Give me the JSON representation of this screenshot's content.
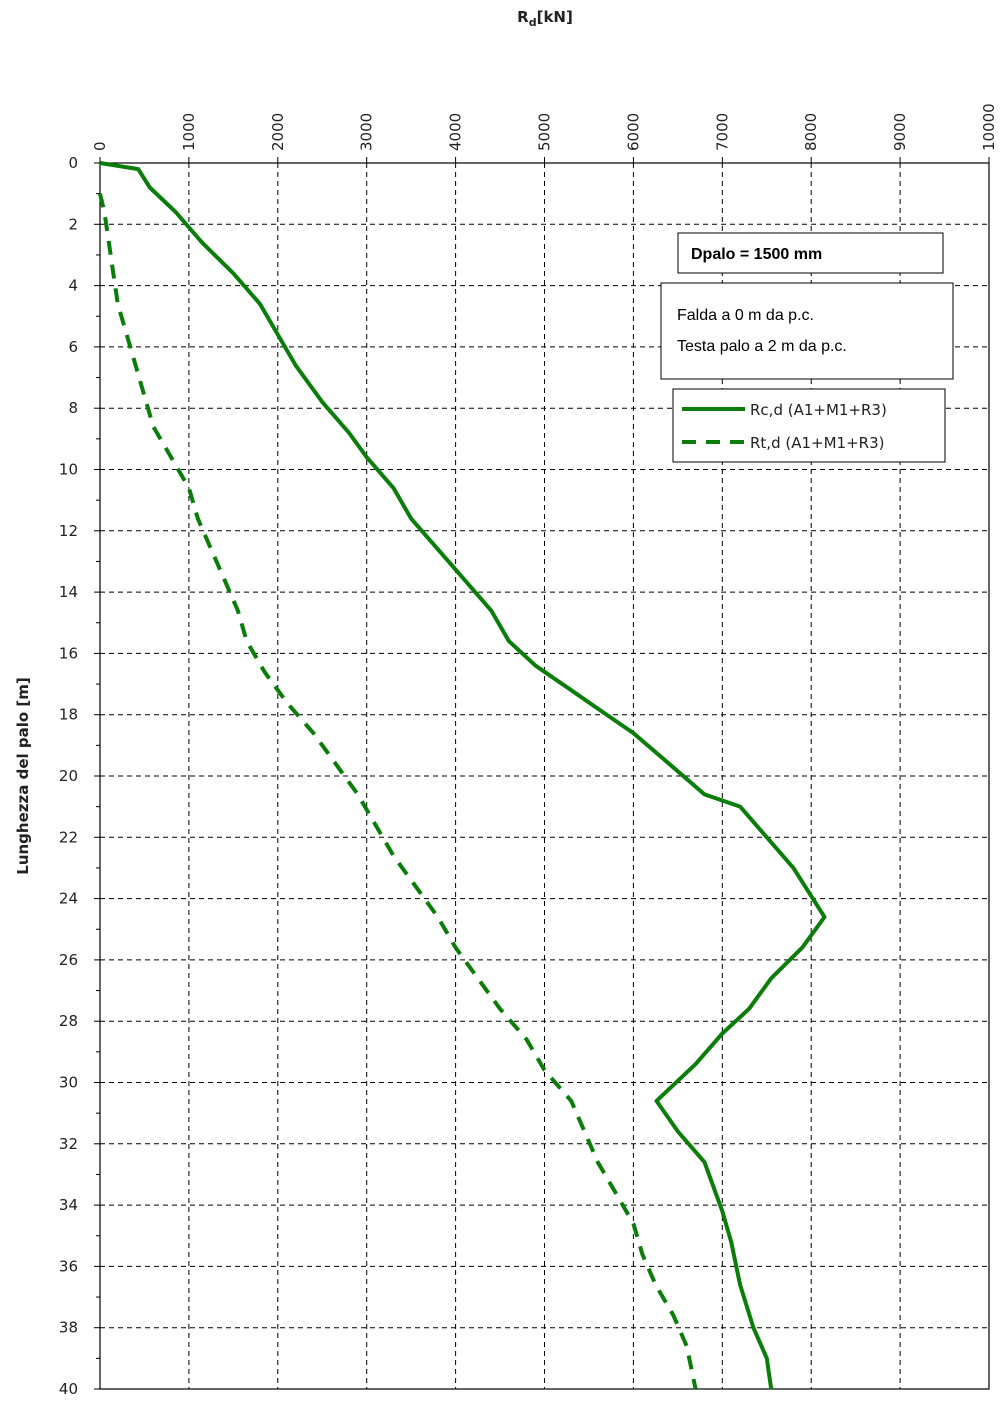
{
  "chart_data": {
    "type": "line",
    "title": "",
    "xlabel_main": "R",
    "xlabel_sub": "d",
    "xlabel_unit": "[kN]",
    "ylabel": "Lunghezza del palo [m]",
    "xlim": [
      0,
      10000
    ],
    "ylim": [
      0,
      40
    ],
    "y_inverted": true,
    "x_axis_position": "top",
    "x_ticks": [
      "0",
      "1000",
      "2000",
      "3000",
      "4000",
      "5000",
      "6000",
      "7000",
      "8000",
      "9000",
      "10000"
    ],
    "y_ticks": [
      "0",
      "2",
      "4",
      "6",
      "8",
      "10",
      "12",
      "14",
      "16",
      "18",
      "20",
      "22",
      "24",
      "26",
      "28",
      "30",
      "32",
      "34",
      "36",
      "38",
      "40"
    ],
    "grid": true,
    "legend_position": "top-right",
    "series": [
      {
        "name": "Rc,d (A1+M1+R3)",
        "color": "#0a7d0a",
        "style": "solid",
        "points": [
          [
            0,
            0
          ],
          [
            430,
            0.2
          ],
          [
            560,
            0.8
          ],
          [
            850,
            1.6
          ],
          [
            1150,
            2.6
          ],
          [
            1500,
            3.6
          ],
          [
            1800,
            4.6
          ],
          [
            2000,
            5.6
          ],
          [
            2200,
            6.6
          ],
          [
            2500,
            7.8
          ],
          [
            2800,
            8.8
          ],
          [
            3000,
            9.6
          ],
          [
            3300,
            10.6
          ],
          [
            3500,
            11.6
          ],
          [
            3800,
            12.6
          ],
          [
            4100,
            13.6
          ],
          [
            4400,
            14.6
          ],
          [
            4600,
            15.6
          ],
          [
            4900,
            16.4
          ],
          [
            5300,
            17.2
          ],
          [
            5600,
            17.8
          ],
          [
            6000,
            18.6
          ],
          [
            6400,
            19.6
          ],
          [
            6800,
            20.6
          ],
          [
            7200,
            21.0
          ],
          [
            7500,
            22.0
          ],
          [
            7800,
            23.0
          ],
          [
            8150,
            24.6
          ],
          [
            7900,
            25.6
          ],
          [
            7550,
            26.6
          ],
          [
            7300,
            27.6
          ],
          [
            7000,
            28.4
          ],
          [
            6700,
            29.4
          ],
          [
            6260,
            30.6
          ],
          [
            6500,
            31.6
          ],
          [
            6800,
            32.6
          ],
          [
            7000,
            34.2
          ],
          [
            7100,
            35.2
          ],
          [
            7200,
            36.6
          ],
          [
            7350,
            38.0
          ],
          [
            7500,
            39.0
          ],
          [
            7550,
            40.0
          ]
        ]
      },
      {
        "name": "Rt,d (A1+M1+R3)",
        "color": "#0a7d0a",
        "style": "dashed",
        "points": [
          [
            0,
            1.0
          ],
          [
            50,
            1.6
          ],
          [
            100,
            2.6
          ],
          [
            150,
            3.6
          ],
          [
            200,
            4.6
          ],
          [
            300,
            5.6
          ],
          [
            400,
            6.6
          ],
          [
            500,
            7.6
          ],
          [
            600,
            8.6
          ],
          [
            800,
            9.6
          ],
          [
            1000,
            10.6
          ],
          [
            1100,
            11.6
          ],
          [
            1250,
            12.6
          ],
          [
            1400,
            13.6
          ],
          [
            1550,
            14.6
          ],
          [
            1650,
            15.6
          ],
          [
            1850,
            16.6
          ],
          [
            2100,
            17.6
          ],
          [
            2400,
            18.6
          ],
          [
            2650,
            19.6
          ],
          [
            2900,
            20.6
          ],
          [
            3100,
            21.6
          ],
          [
            3300,
            22.6
          ],
          [
            3550,
            23.6
          ],
          [
            3800,
            24.6
          ],
          [
            4000,
            25.6
          ],
          [
            4250,
            26.6
          ],
          [
            4500,
            27.6
          ],
          [
            4800,
            28.6
          ],
          [
            5000,
            29.6
          ],
          [
            5300,
            30.6
          ],
          [
            5450,
            31.6
          ],
          [
            5600,
            32.6
          ],
          [
            5800,
            33.6
          ],
          [
            6000,
            34.6
          ],
          [
            6100,
            35.6
          ],
          [
            6250,
            36.6
          ],
          [
            6450,
            37.6
          ],
          [
            6600,
            38.6
          ],
          [
            6700,
            40.0
          ]
        ]
      }
    ],
    "annotations": {
      "diameter": "Dpalo = 1500  mm",
      "note_line1": "Falda a  0 m da p.c.",
      "note_line2": "Testa palo a 2 m da p.c."
    }
  }
}
